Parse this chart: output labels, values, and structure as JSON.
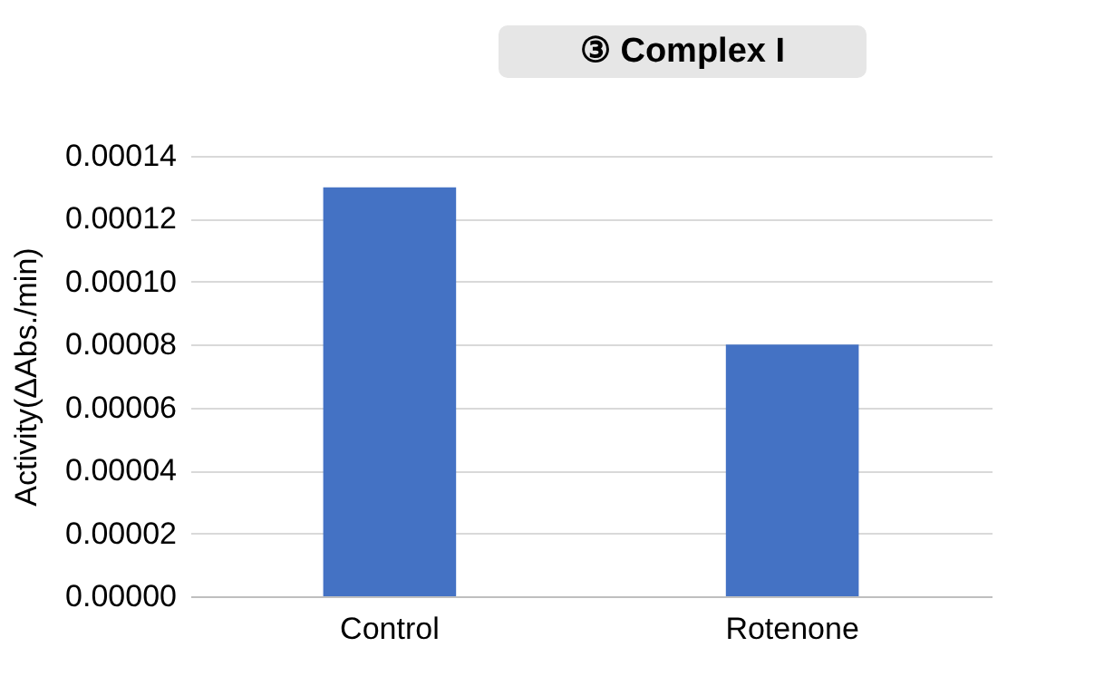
{
  "chart_data": {
    "type": "bar",
    "title": "③ Complex I",
    "ylabel": "Activity(ΔAbs./min)",
    "categories": [
      "Control",
      "Rotenone"
    ],
    "values": [
      0.00013,
      8e-05
    ],
    "color": "#4472c4",
    "ylim": [
      0,
      0.00014
    ],
    "yticks": [
      {
        "value": 0,
        "label": "0.00000"
      },
      {
        "value": 2e-05,
        "label": "0.00002"
      },
      {
        "value": 4e-05,
        "label": "0.00004"
      },
      {
        "value": 6e-05,
        "label": "0.00006"
      },
      {
        "value": 8e-05,
        "label": "0.00008"
      },
      {
        "value": 0.0001,
        "label": "0.00010"
      },
      {
        "value": 0.00012,
        "label": "0.00012"
      },
      {
        "value": 0.00014,
        "label": "0.00014"
      }
    ],
    "grid": "y"
  }
}
